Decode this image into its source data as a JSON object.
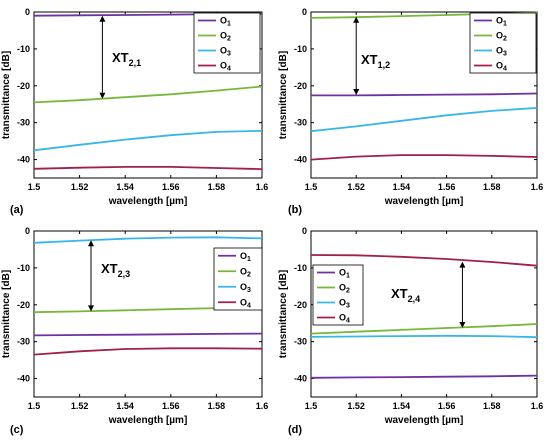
{
  "chart_data": [
    {
      "type": "line",
      "panel_label": "(a)",
      "xlabel": "wavelength [µm]",
      "ylabel": "transmittance [dB]",
      "xlim": [
        1.5,
        1.6
      ],
      "ylim": [
        -45,
        0
      ],
      "xticks": [
        1.5,
        1.52,
        1.54,
        1.56,
        1.58,
        1.6
      ],
      "xtick_labels": [
        "1.5",
        "1.52",
        "1.54",
        "1.56",
        "1.58",
        "1.6"
      ],
      "yticks": [
        0,
        -10,
        -20,
        -30,
        -40
      ],
      "ytick_labels": [
        "0",
        "-10",
        "-20",
        "-30",
        "-40"
      ],
      "legend_position": "top-right",
      "annotation": {
        "main": "XT",
        "sub": "2,1",
        "x": 1.53,
        "y_from": -1,
        "y_to": -23.5
      },
      "series": [
        {
          "name": "O",
          "sub": "1",
          "color": "#7030a0",
          "x": [
            1.5,
            1.52,
            1.54,
            1.56,
            1.58,
            1.6
          ],
          "y": [
            -1,
            -0.9,
            -0.8,
            -0.7,
            -0.6,
            -0.5
          ]
        },
        {
          "name": "O",
          "sub": "2",
          "color": "#77b83a",
          "x": [
            1.5,
            1.52,
            1.54,
            1.56,
            1.58,
            1.6
          ],
          "y": [
            -24.5,
            -23.9,
            -23.1,
            -22.3,
            -21.3,
            -20.2
          ]
        },
        {
          "name": "O",
          "sub": "3",
          "color": "#38b6e8",
          "x": [
            1.5,
            1.52,
            1.54,
            1.56,
            1.58,
            1.6
          ],
          "y": [
            -37.5,
            -36.0,
            -34.6,
            -33.4,
            -32.5,
            -32.2
          ]
        },
        {
          "name": "O",
          "sub": "4",
          "color": "#a0204a",
          "x": [
            1.5,
            1.52,
            1.54,
            1.56,
            1.58,
            1.6
          ],
          "y": [
            -42.5,
            -42.2,
            -42.0,
            -42.0,
            -42.3,
            -42.6
          ]
        }
      ]
    },
    {
      "type": "line",
      "panel_label": "(b)",
      "xlabel": "wavelength [µm]",
      "ylabel": "transmittance [dB]",
      "xlim": [
        1.5,
        1.6
      ],
      "ylim": [
        -45,
        0
      ],
      "xticks": [
        1.5,
        1.52,
        1.54,
        1.56,
        1.58,
        1.6
      ],
      "xtick_labels": [
        "1.5",
        "1.52",
        "1.54",
        "1.56",
        "1.58",
        "1.6"
      ],
      "yticks": [
        0,
        -10,
        -20,
        -30,
        -40
      ],
      "ytick_labels": [
        "0",
        "-10",
        "-20",
        "-30",
        "-40"
      ],
      "legend_position": "top-right",
      "annotation": {
        "main": "XT",
        "sub": "1,2",
        "x": 1.52,
        "y_from": -1.3,
        "y_to": -22.5
      },
      "series": [
        {
          "name": "O",
          "sub": "1",
          "color": "#7030a0",
          "x": [
            1.5,
            1.52,
            1.54,
            1.56,
            1.58,
            1.6
          ],
          "y": [
            -22.6,
            -22.6,
            -22.5,
            -22.4,
            -22.3,
            -22.1
          ]
        },
        {
          "name": "O",
          "sub": "2",
          "color": "#77b83a",
          "x": [
            1.5,
            1.52,
            1.54,
            1.56,
            1.58,
            1.6
          ],
          "y": [
            -1.6,
            -1.4,
            -1.1,
            -0.8,
            -0.5,
            -0.2
          ]
        },
        {
          "name": "O",
          "sub": "3",
          "color": "#38b6e8",
          "x": [
            1.5,
            1.52,
            1.54,
            1.56,
            1.58,
            1.6
          ],
          "y": [
            -32.3,
            -31.0,
            -29.5,
            -28.0,
            -26.8,
            -26.0
          ]
        },
        {
          "name": "O",
          "sub": "4",
          "color": "#a0204a",
          "x": [
            1.5,
            1.52,
            1.54,
            1.56,
            1.58,
            1.6
          ],
          "y": [
            -40.0,
            -39.2,
            -38.8,
            -38.8,
            -39.0,
            -39.3
          ]
        }
      ]
    },
    {
      "type": "line",
      "panel_label": "(c)",
      "xlabel": "wavelength [µm]",
      "ylabel": "transmittance [dB]",
      "xlim": [
        1.5,
        1.6
      ],
      "ylim": [
        -45,
        0
      ],
      "xticks": [
        1.5,
        1.52,
        1.54,
        1.56,
        1.58,
        1.6
      ],
      "xtick_labels": [
        "1.5",
        "1.52",
        "1.54",
        "1.56",
        "1.58",
        "1.6"
      ],
      "yticks": [
        0,
        -10,
        -20,
        -30,
        -40
      ],
      "ytick_labels": [
        "0",
        "-10",
        "-20",
        "-30",
        "-40"
      ],
      "legend_position": "right",
      "annotation": {
        "main": "XT",
        "sub": "2,3",
        "x": 1.525,
        "y_from": -2.5,
        "y_to": -21.8
      },
      "series": [
        {
          "name": "O",
          "sub": "1",
          "color": "#7030a0",
          "x": [
            1.5,
            1.52,
            1.54,
            1.56,
            1.58,
            1.6
          ],
          "y": [
            -28.3,
            -28.2,
            -28.1,
            -28.0,
            -27.9,
            -27.8
          ]
        },
        {
          "name": "O",
          "sub": "2",
          "color": "#77b83a",
          "x": [
            1.5,
            1.52,
            1.54,
            1.56,
            1.58,
            1.6
          ],
          "y": [
            -22.0,
            -21.8,
            -21.5,
            -21.2,
            -20.9,
            -20.6
          ]
        },
        {
          "name": "O",
          "sub": "3",
          "color": "#38b6e8",
          "x": [
            1.5,
            1.52,
            1.54,
            1.56,
            1.58,
            1.6
          ],
          "y": [
            -3.2,
            -2.6,
            -2.1,
            -1.8,
            -1.7,
            -2.0
          ]
        },
        {
          "name": "O",
          "sub": "4",
          "color": "#a0204a",
          "x": [
            1.5,
            1.52,
            1.54,
            1.56,
            1.58,
            1.6
          ],
          "y": [
            -33.5,
            -32.6,
            -32.0,
            -31.8,
            -31.8,
            -31.9
          ]
        }
      ]
    },
    {
      "type": "line",
      "panel_label": "(d)",
      "xlabel": "wavelength [µm]",
      "ylabel": "transmittance [dB]",
      "xlim": [
        1.5,
        1.6
      ],
      "ylim": [
        -45,
        0
      ],
      "xticks": [
        1.5,
        1.52,
        1.54,
        1.56,
        1.58,
        1.6
      ],
      "xtick_labels": [
        "1.5",
        "1.52",
        "1.54",
        "1.56",
        "1.58",
        "1.6"
      ],
      "yticks": [
        0,
        -10,
        -20,
        -30,
        -40
      ],
      "ytick_labels": [
        "0",
        "-10",
        "-20",
        "-30",
        "-40"
      ],
      "legend_position": "left",
      "annotation": {
        "main": "XT",
        "sub": "2,4",
        "x": 1.567,
        "y_from": -8.3,
        "y_to": -26.3
      },
      "series": [
        {
          "name": "O",
          "sub": "1",
          "color": "#7030a0",
          "x": [
            1.5,
            1.52,
            1.54,
            1.56,
            1.58,
            1.6
          ],
          "y": [
            -39.8,
            -39.7,
            -39.6,
            -39.5,
            -39.4,
            -39.2
          ]
        },
        {
          "name": "O",
          "sub": "2",
          "color": "#77b83a",
          "x": [
            1.5,
            1.52,
            1.54,
            1.56,
            1.58,
            1.6
          ],
          "y": [
            -27.8,
            -27.3,
            -26.8,
            -26.3,
            -25.8,
            -25.2
          ]
        },
        {
          "name": "O",
          "sub": "3",
          "color": "#38b6e8",
          "x": [
            1.5,
            1.52,
            1.54,
            1.56,
            1.58,
            1.6
          ],
          "y": [
            -28.7,
            -28.6,
            -28.5,
            -28.4,
            -28.5,
            -28.8
          ]
        },
        {
          "name": "O",
          "sub": "4",
          "color": "#a0204a",
          "x": [
            1.5,
            1.52,
            1.54,
            1.56,
            1.58,
            1.6
          ],
          "y": [
            -6.5,
            -6.6,
            -7.0,
            -7.6,
            -8.4,
            -9.4
          ]
        }
      ]
    }
  ]
}
